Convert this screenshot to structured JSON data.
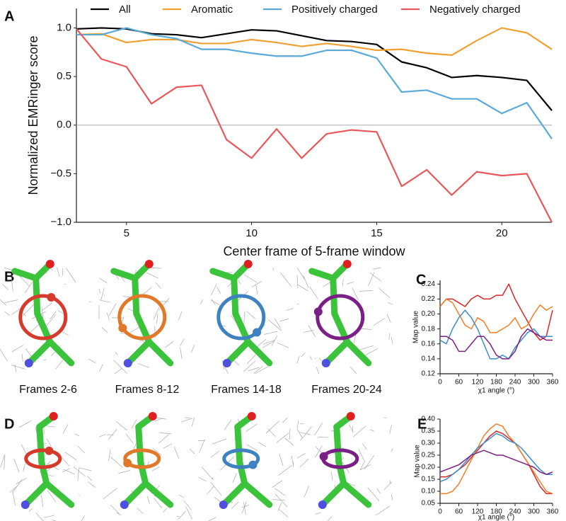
{
  "chart_data": [
    {
      "type": "line",
      "ylabel": "Normalized EMRinger score",
      "xlabel": "Center frame of 5-frame window",
      "xlim": [
        3,
        22
      ],
      "ylim": [
        -1,
        1.2
      ],
      "xticks": [
        5,
        10,
        15,
        20
      ],
      "yticks": [
        {
          "value": -1,
          "label": "−1.0"
        },
        {
          "value": -0.5,
          "label": "−0.5"
        },
        {
          "value": 0,
          "label": "0.0"
        },
        {
          "value": 0.5,
          "label": "0.5"
        },
        {
          "value": 1,
          "label": "1.0"
        }
      ],
      "zero_line": true,
      "legend": "top",
      "x": [
        3,
        4,
        5,
        6,
        7,
        8,
        9,
        10,
        11,
        12,
        13,
        14,
        15,
        16,
        17,
        18,
        19,
        20,
        21,
        22
      ],
      "series": [
        {
          "name": "All",
          "color": "#000000",
          "values": [
            0.99,
            1.0,
            0.99,
            0.94,
            0.93,
            0.9,
            0.94,
            0.98,
            0.97,
            0.92,
            0.87,
            0.86,
            0.83,
            0.65,
            0.59,
            0.49,
            0.51,
            0.49,
            0.46,
            0.15
          ]
        },
        {
          "name": "Aromatic",
          "color": "#f0a030",
          "values": [
            0.93,
            0.94,
            0.85,
            0.88,
            0.88,
            0.84,
            0.84,
            0.88,
            0.85,
            0.81,
            0.84,
            0.81,
            0.77,
            0.78,
            0.74,
            0.72,
            0.87,
            1.0,
            0.95,
            0.78
          ]
        },
        {
          "name": "Positively charged",
          "color": "#5aaad8",
          "values": [
            0.93,
            0.93,
            1.0,
            0.93,
            0.89,
            0.78,
            0.78,
            0.74,
            0.71,
            0.71,
            0.77,
            0.77,
            0.69,
            0.34,
            0.36,
            0.27,
            0.27,
            0.12,
            0.23,
            -0.14
          ]
        },
        {
          "name": "Negatively charged",
          "color": "#e8585a",
          "values": [
            0.99,
            0.68,
            0.6,
            0.22,
            0.39,
            0.41,
            -0.15,
            -0.34,
            -0.04,
            -0.34,
            -0.09,
            -0.05,
            -0.07,
            -0.63,
            -0.46,
            -0.72,
            -0.48,
            -0.52,
            -0.5,
            -1.0
          ]
        }
      ]
    },
    {
      "type": "line",
      "ylabel": "Map value",
      "xlabel": "χ1 angle (°)",
      "xlim": [
        0,
        360
      ],
      "ylim": [
        0.12,
        0.245
      ],
      "xticks": [
        0,
        60,
        120,
        180,
        240,
        300,
        360
      ],
      "yticks": [
        0.12,
        0.14,
        0.16,
        0.18,
        {
          "value": 0.2,
          "label": "0.20"
        },
        0.22,
        0.24
      ],
      "x": [
        0,
        20,
        40,
        60,
        80,
        100,
        120,
        140,
        160,
        180,
        200,
        220,
        240,
        260,
        280,
        300,
        320,
        340,
        360
      ],
      "series": [
        {
          "color": "#d62728",
          "values": [
            0.21,
            0.22,
            0.22,
            0.215,
            0.21,
            0.22,
            0.225,
            0.22,
            0.22,
            0.225,
            0.225,
            0.24,
            0.22,
            0.205,
            0.19,
            0.175,
            0.165,
            0.17,
            0.205
          ]
        },
        {
          "color": "#f07f2a",
          "values": [
            0.21,
            0.22,
            0.215,
            0.2,
            0.185,
            0.18,
            0.195,
            0.19,
            0.175,
            0.175,
            0.18,
            0.185,
            0.195,
            0.18,
            0.185,
            0.2,
            0.212,
            0.205,
            0.21
          ]
        },
        {
          "color": "#3c8ccc",
          "values": [
            0.165,
            0.16,
            0.18,
            0.195,
            0.205,
            0.195,
            0.18,
            0.16,
            0.14,
            0.14,
            0.145,
            0.14,
            0.155,
            0.165,
            0.175,
            0.18,
            0.17,
            0.17,
            0.17
          ]
        },
        {
          "color": "#7b2082",
          "values": [
            0.17,
            0.17,
            0.165,
            0.15,
            0.15,
            0.16,
            0.17,
            0.17,
            0.16,
            0.145,
            0.14,
            0.14,
            0.15,
            0.17,
            0.18,
            0.175,
            0.17,
            0.165,
            0.165
          ]
        }
      ]
    },
    {
      "type": "line",
      "ylabel": "Map value",
      "xlabel": "χ1 angle (°)",
      "xlim": [
        0,
        360
      ],
      "ylim": [
        0.05,
        0.4
      ],
      "xticks": [
        0,
        60,
        120,
        180,
        240,
        300,
        360
      ],
      "yticks": [
        0.05,
        {
          "value": 0.1,
          "label": "0.10"
        },
        0.15,
        {
          "value": 0.2,
          "label": "0.20"
        },
        0.25,
        {
          "value": 0.3,
          "label": "0.30"
        },
        0.35,
        {
          "value": 0.4,
          "label": "0.40"
        }
      ],
      "x": [
        0,
        20,
        40,
        60,
        80,
        100,
        120,
        140,
        160,
        180,
        200,
        220,
        240,
        260,
        280,
        300,
        320,
        340,
        360
      ],
      "series": [
        {
          "color": "#d62728",
          "values": [
            0.16,
            0.16,
            0.17,
            0.19,
            0.21,
            0.24,
            0.27,
            0.3,
            0.33,
            0.35,
            0.34,
            0.32,
            0.3,
            0.26,
            0.22,
            0.17,
            0.12,
            0.09,
            0.09
          ]
        },
        {
          "color": "#f07f2a",
          "values": [
            0.09,
            0.09,
            0.1,
            0.13,
            0.18,
            0.23,
            0.28,
            0.33,
            0.36,
            0.38,
            0.37,
            0.33,
            0.3,
            0.26,
            0.22,
            0.18,
            0.14,
            0.1,
            0.09
          ]
        },
        {
          "color": "#3c8ccc",
          "values": [
            0.14,
            0.15,
            0.17,
            0.19,
            0.22,
            0.25,
            0.28,
            0.3,
            0.32,
            0.34,
            0.33,
            0.31,
            0.3,
            0.28,
            0.25,
            0.22,
            0.19,
            0.17,
            0.17
          ]
        },
        {
          "color": "#7b2082",
          "values": [
            0.18,
            0.19,
            0.2,
            0.21,
            0.23,
            0.25,
            0.26,
            0.27,
            0.26,
            0.25,
            0.25,
            0.24,
            0.23,
            0.22,
            0.21,
            0.2,
            0.18,
            0.17,
            0.18
          ]
        }
      ]
    }
  ],
  "panel_labels": [
    "A",
    "B",
    "C",
    "D",
    "E"
  ],
  "frame_labels": [
    "Frames 2-6",
    "Frames 8-12",
    "Frames 14-18",
    "Frames 20-24"
  ]
}
